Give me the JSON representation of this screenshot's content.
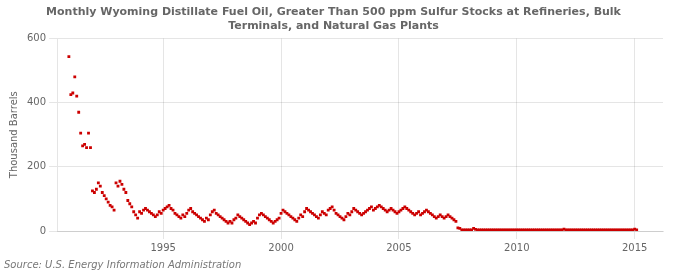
{
  "chart_data": {
    "type": "scatter",
    "title": "Monthly Wyoming Distillate Fuel Oil, Greater Than 500 ppm Sulfur Stocks at Refineries, Bulk\nTerminals, and Natural Gas Plants",
    "y_label": "Thousand Barrels",
    "annotations": [
      "Source: U.S. Energy Information Administration"
    ],
    "color": "#cc0000",
    "marker": "square",
    "grid": true,
    "xlim": [
      1990.5,
      2016.2
    ],
    "xticks": [
      1995,
      2000,
      2005,
      2010,
      2015
    ],
    "ylim": [
      0,
      600
    ],
    "yticks": [
      0,
      200,
      400,
      600
    ],
    "x": [
      1991.0,
      1991.083,
      1991.167,
      1991.25,
      1991.333,
      1991.417,
      1991.5,
      1991.583,
      1991.667,
      1991.75,
      1991.833,
      1991.917,
      1992.0,
      1992.083,
      1992.167,
      1992.25,
      1992.333,
      1992.417,
      1992.5,
      1992.583,
      1992.667,
      1992.75,
      1992.833,
      1992.917,
      1993.0,
      1993.083,
      1993.167,
      1993.25,
      1993.333,
      1993.417,
      1993.5,
      1993.583,
      1993.667,
      1993.75,
      1993.833,
      1993.917,
      1994.0,
      1994.083,
      1994.167,
      1994.25,
      1994.333,
      1994.417,
      1994.5,
      1994.583,
      1994.667,
      1994.75,
      1994.833,
      1994.917,
      1995.0,
      1995.083,
      1995.167,
      1995.25,
      1995.333,
      1995.417,
      1995.5,
      1995.583,
      1995.667,
      1995.75,
      1995.833,
      1995.917,
      1996.0,
      1996.083,
      1996.167,
      1996.25,
      1996.333,
      1996.417,
      1996.5,
      1996.583,
      1996.667,
      1996.75,
      1996.833,
      1996.917,
      1997.0,
      1997.083,
      1997.167,
      1997.25,
      1997.333,
      1997.417,
      1997.5,
      1997.583,
      1997.667,
      1997.75,
      1997.833,
      1997.917,
      1998.0,
      1998.083,
      1998.167,
      1998.25,
      1998.333,
      1998.417,
      1998.5,
      1998.583,
      1998.667,
      1998.75,
      1998.833,
      1998.917,
      1999.0,
      1999.083,
      1999.167,
      1999.25,
      1999.333,
      1999.417,
      1999.5,
      1999.583,
      1999.667,
      1999.75,
      1999.833,
      1999.917,
      2000.0,
      2000.083,
      2000.167,
      2000.25,
      2000.333,
      2000.417,
      2000.5,
      2000.583,
      2000.667,
      2000.75,
      2000.833,
      2000.917,
      2001.0,
      2001.083,
      2001.167,
      2001.25,
      2001.333,
      2001.417,
      2001.5,
      2001.583,
      2001.667,
      2001.75,
      2001.833,
      2001.917,
      2002.0,
      2002.083,
      2002.167,
      2002.25,
      2002.333,
      2002.417,
      2002.5,
      2002.583,
      2002.667,
      2002.75,
      2002.833,
      2002.917,
      2003.0,
      2003.083,
      2003.167,
      2003.25,
      2003.333,
      2003.417,
      2003.5,
      2003.583,
      2003.667,
      2003.75,
      2003.833,
      2003.917,
      2004.0,
      2004.083,
      2004.167,
      2004.25,
      2004.333,
      2004.417,
      2004.5,
      2004.583,
      2004.667,
      2004.75,
      2004.833,
      2004.917,
      2005.0,
      2005.083,
      2005.167,
      2005.25,
      2005.333,
      2005.417,
      2005.5,
      2005.583,
      2005.667,
      2005.75,
      2005.833,
      2005.917,
      2006.0,
      2006.083,
      2006.167,
      2006.25,
      2006.333,
      2006.417,
      2006.5,
      2006.583,
      2006.667,
      2006.75,
      2006.833,
      2006.917,
      2007.0,
      2007.083,
      2007.167,
      2007.25,
      2007.333,
      2007.417,
      2007.5,
      2007.583,
      2007.667,
      2007.75,
      2007.833,
      2007.917,
      2008.0,
      2008.083,
      2008.167,
      2008.25,
      2008.333,
      2008.417,
      2008.5,
      2008.583,
      2008.667,
      2008.75,
      2008.833,
      2008.917,
      2009.0,
      2009.083,
      2009.167,
      2009.25,
      2009.333,
      2009.417,
      2009.5,
      2009.583,
      2009.667,
      2009.75,
      2009.833,
      2009.917,
      2010.0,
      2010.083,
      2010.167,
      2010.25,
      2010.333,
      2010.417,
      2010.5,
      2010.583,
      2010.667,
      2010.75,
      2010.833,
      2010.917,
      2011.0,
      2011.083,
      2011.167,
      2011.25,
      2011.333,
      2011.417,
      2011.5,
      2011.583,
      2011.667,
      2011.75,
      2011.833,
      2011.917,
      2012.0,
      2012.083,
      2012.167,
      2012.25,
      2012.333,
      2012.417,
      2012.5,
      2012.583,
      2012.667,
      2012.75,
      2012.833,
      2012.917,
      2013.0,
      2013.083,
      2013.167,
      2013.25,
      2013.333,
      2013.417,
      2013.5,
      2013.583,
      2013.667,
      2013.75,
      2013.833,
      2013.917,
      2014.0,
      2014.083,
      2014.167,
      2014.25,
      2014.333,
      2014.417,
      2014.5,
      2014.583,
      2014.667,
      2014.75,
      2014.833,
      2014.917,
      2015.0,
      2015.083
    ],
    "values": [
      543,
      425,
      430,
      480,
      420,
      370,
      305,
      265,
      270,
      260,
      305,
      260,
      125,
      120,
      130,
      150,
      140,
      120,
      110,
      100,
      90,
      80,
      75,
      65,
      150,
      140,
      155,
      145,
      130,
      120,
      95,
      85,
      75,
      60,
      50,
      40,
      60,
      55,
      65,
      70,
      65,
      60,
      55,
      50,
      45,
      50,
      60,
      55,
      65,
      70,
      75,
      80,
      70,
      65,
      55,
      50,
      45,
      40,
      50,
      45,
      55,
      65,
      70,
      60,
      55,
      50,
      45,
      40,
      35,
      30,
      40,
      35,
      50,
      60,
      65,
      55,
      50,
      45,
      40,
      35,
      30,
      25,
      30,
      25,
      35,
      40,
      50,
      45,
      40,
      35,
      30,
      25,
      20,
      25,
      30,
      25,
      40,
      50,
      55,
      50,
      45,
      40,
      35,
      30,
      25,
      30,
      35,
      40,
      55,
      65,
      60,
      55,
      50,
      45,
      40,
      35,
      30,
      40,
      50,
      45,
      60,
      70,
      65,
      60,
      55,
      50,
      45,
      40,
      50,
      60,
      55,
      50,
      65,
      70,
      75,
      65,
      55,
      50,
      45,
      40,
      35,
      45,
      55,
      50,
      60,
      70,
      65,
      60,
      55,
      50,
      55,
      60,
      65,
      70,
      75,
      65,
      70,
      75,
      80,
      75,
      70,
      65,
      60,
      65,
      70,
      65,
      60,
      55,
      60,
      65,
      70,
      75,
      70,
      65,
      60,
      55,
      50,
      55,
      60,
      50,
      55,
      60,
      65,
      60,
      55,
      50,
      45,
      40,
      45,
      50,
      45,
      40,
      45,
      50,
      45,
      40,
      35,
      30,
      10,
      8,
      3,
      3,
      3,
      3,
      3,
      3,
      8,
      5,
      3,
      3,
      3,
      3,
      3,
      3,
      3,
      3,
      3,
      3,
      3,
      3,
      3,
      3,
      3,
      3,
      3,
      3,
      3,
      3,
      3,
      3,
      3,
      3,
      3,
      3,
      3,
      3,
      3,
      3,
      3,
      3,
      3,
      3,
      3,
      3,
      3,
      3,
      3,
      3,
      3,
      3,
      3,
      3,
      6,
      3,
      3,
      3,
      3,
      3,
      3,
      3,
      3,
      3,
      3,
      3,
      3,
      3,
      3,
      3,
      3,
      3,
      3,
      3,
      3,
      3,
      3,
      3,
      3,
      3,
      3,
      3,
      3,
      3,
      3,
      3,
      3,
      3,
      3,
      3,
      6,
      3
    ]
  }
}
